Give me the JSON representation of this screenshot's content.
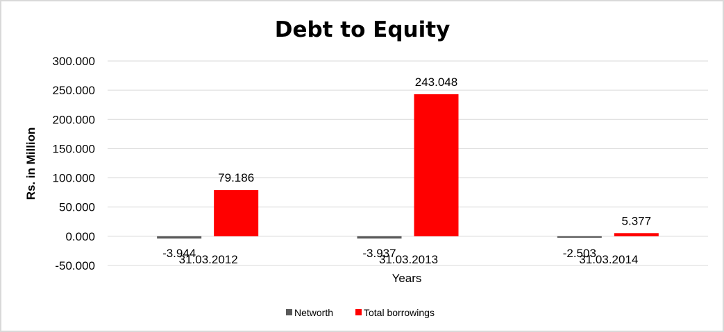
{
  "chart_data": {
    "type": "bar",
    "title": "Debt to Equity",
    "xlabel": "Years",
    "ylabel": "Rs. in Million",
    "categories": [
      "31.03.2012",
      "31.03.2013",
      "31.03.2014"
    ],
    "series": [
      {
        "name": "Networth",
        "color": "#595959",
        "values": [
          -3.944,
          -3.937,
          -2.503
        ],
        "labels": [
          "-3.944",
          "-3.937",
          "-2.503"
        ]
      },
      {
        "name": "Total borrowings",
        "color": "#ff0000",
        "values": [
          79.186,
          243.048,
          5.377
        ],
        "labels": [
          "79.186",
          "243.048",
          "5.377"
        ]
      }
    ],
    "ylim": [
      -50,
      300
    ],
    "yticks": [
      -50,
      0,
      50,
      100,
      150,
      200,
      250,
      300
    ],
    "ytick_labels": [
      "-50.000",
      "0.000",
      "50.000",
      "100.000",
      "150.000",
      "200.000",
      "250.000",
      "300.000"
    ],
    "grid": true,
    "legend": "bottom"
  }
}
